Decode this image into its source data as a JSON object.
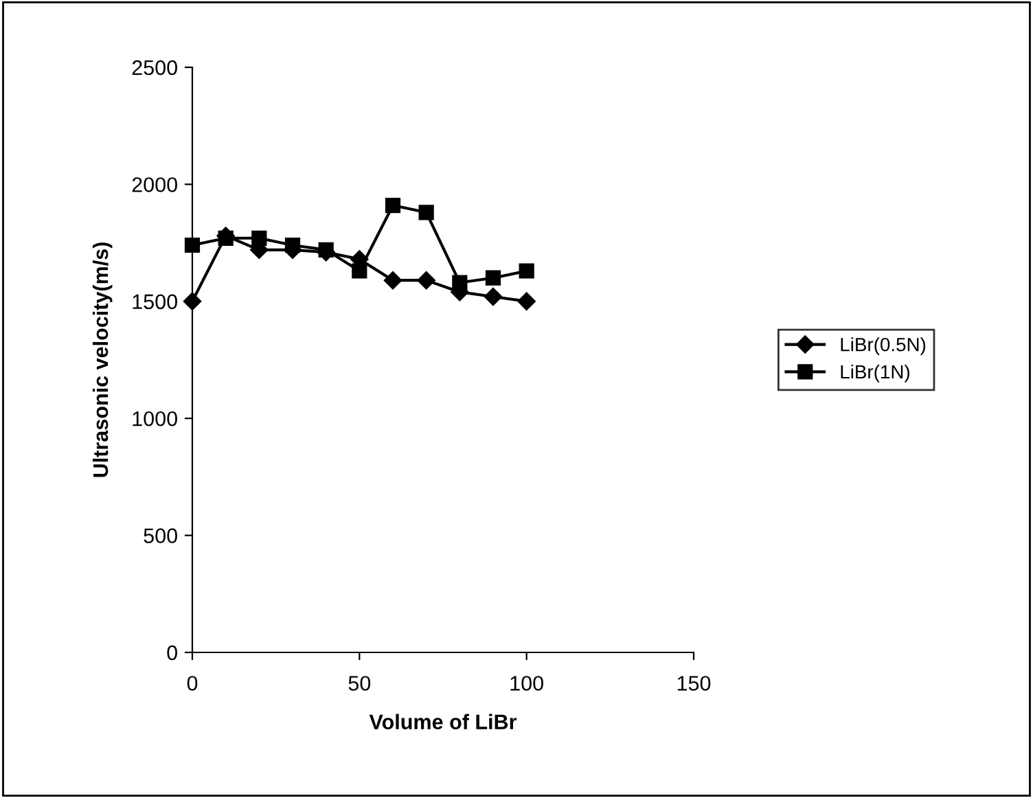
{
  "chart_data": {
    "type": "line",
    "xlabel": "Volume of LiBr",
    "ylabel": "Ultrasonic velocity(m/s)",
    "x": [
      0,
      10,
      20,
      30,
      40,
      50,
      60,
      70,
      80,
      90,
      100
    ],
    "series": [
      {
        "name": "LiBr(0.5N)",
        "color": "#000000",
        "marker": "diamond",
        "values": [
          1500,
          1780,
          1720,
          1720,
          1710,
          1680,
          1590,
          1590,
          1540,
          1520,
          1500
        ]
      },
      {
        "name": "LiBr(1N)",
        "color": "#000000",
        "marker": "square",
        "values": [
          1740,
          1770,
          1770,
          1740,
          1720,
          1630,
          1910,
          1880,
          1580,
          1600,
          1630
        ]
      }
    ],
    "xlim": [
      0,
      150
    ],
    "xticks": [
      0,
      50,
      100,
      150
    ],
    "ylim": [
      0,
      2500
    ],
    "yticks": [
      0,
      500,
      1000,
      1500,
      2000,
      2500
    ],
    "grid": false,
    "legend": "right",
    "line_style": "solid"
  }
}
